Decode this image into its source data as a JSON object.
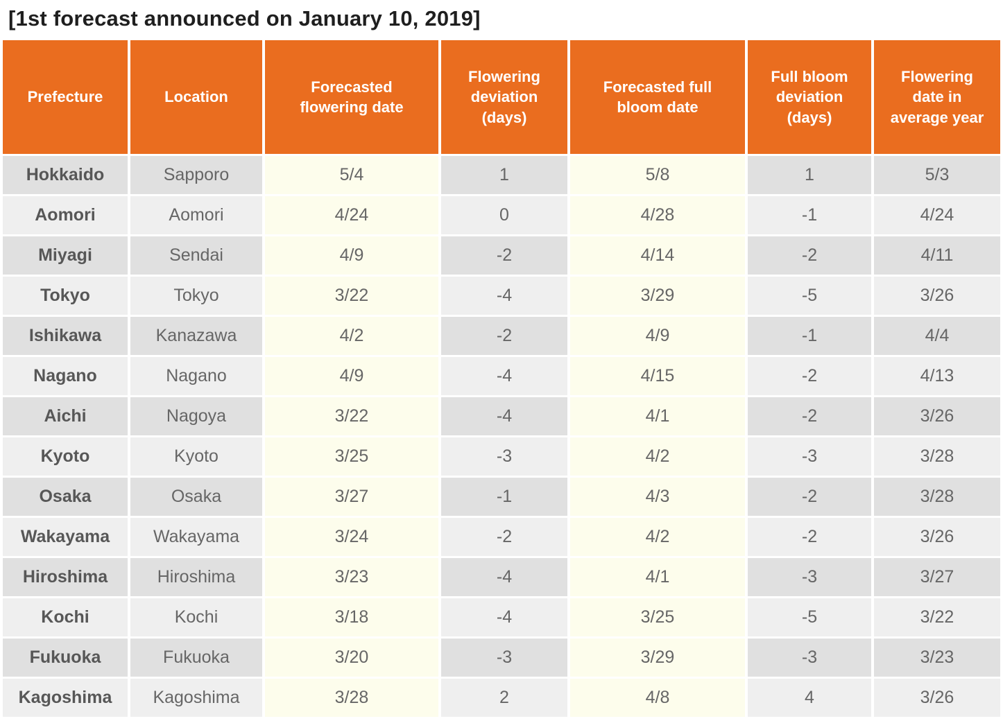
{
  "title": "[1st forecast announced on January 10, 2019]",
  "table": {
    "columns": [
      {
        "key": "prefecture",
        "label": "Prefecture"
      },
      {
        "key": "location",
        "label": "Location"
      },
      {
        "key": "forecasted-flowering-date",
        "label": "Forecasted flowering date"
      },
      {
        "key": "flowering-deviation-days",
        "label": "Flowering deviation (days)"
      },
      {
        "key": "forecasted-full-bloom-date",
        "label": "Forecasted full bloom date"
      },
      {
        "key": "full-bloom-deviation-days",
        "label": "Full bloom deviation (days)"
      },
      {
        "key": "flowering-date-average-year",
        "label": "Flowering date in average year"
      }
    ],
    "rows": [
      [
        "Hokkaido",
        "Sapporo",
        "5/4",
        "1",
        "5/8",
        "1",
        "5/3"
      ],
      [
        "Aomori",
        "Aomori",
        "4/24",
        "0",
        "4/28",
        "-1",
        "4/24"
      ],
      [
        "Miyagi",
        "Sendai",
        "4/9",
        "-2",
        "4/14",
        "-2",
        "4/11"
      ],
      [
        "Tokyo",
        "Tokyo",
        "3/22",
        "-4",
        "3/29",
        "-5",
        "3/26"
      ],
      [
        "Ishikawa",
        "Kanazawa",
        "4/2",
        "-2",
        "4/9",
        "-1",
        "4/4"
      ],
      [
        "Nagano",
        "Nagano",
        "4/9",
        "-4",
        "4/15",
        "-2",
        "4/13"
      ],
      [
        "Aichi",
        "Nagoya",
        "3/22",
        "-4",
        "4/1",
        "-2",
        "3/26"
      ],
      [
        "Kyoto",
        "Kyoto",
        "3/25",
        "-3",
        "4/2",
        "-3",
        "3/28"
      ],
      [
        "Osaka",
        "Osaka",
        "3/27",
        "-1",
        "4/3",
        "-2",
        "3/28"
      ],
      [
        "Wakayama",
        "Wakayama",
        "3/24",
        "-2",
        "4/2",
        "-2",
        "3/26"
      ],
      [
        "Hiroshima",
        "Hiroshima",
        "3/23",
        "-4",
        "4/1",
        "-3",
        "3/27"
      ],
      [
        "Kochi",
        "Kochi",
        "3/18",
        "-4",
        "3/25",
        "-5",
        "3/22"
      ],
      [
        "Fukuoka",
        "Fukuoka",
        "3/20",
        "-3",
        "3/29",
        "-3",
        "3/23"
      ],
      [
        "Kagoshima",
        "Kagoshima",
        "3/28",
        "2",
        "4/8",
        "4",
        "3/26"
      ]
    ]
  },
  "colors": {
    "header_bg": "#EA6D1F",
    "header_text": "#FFFFFF",
    "row_odd_bg": "#E0E0E0",
    "row_even_bg": "#EFEFEF",
    "date_column_bg": "#FDFDEC",
    "body_text": "#666666",
    "prefecture_text": "#575757",
    "title_text": "#1F1F1F",
    "gap": "#FFFFFF"
  },
  "chart_data": {
    "type": "table",
    "title": "[1st forecast announced on January 10, 2019]",
    "columns": [
      "Prefecture",
      "Location",
      "Forecasted flowering date",
      "Flowering deviation (days)",
      "Forecasted full bloom date",
      "Full bloom deviation (days)",
      "Flowering date in average year"
    ],
    "rows": [
      [
        "Hokkaido",
        "Sapporo",
        "5/4",
        1,
        "5/8",
        1,
        "5/3"
      ],
      [
        "Aomori",
        "Aomori",
        "4/24",
        0,
        "4/28",
        -1,
        "4/24"
      ],
      [
        "Miyagi",
        "Sendai",
        "4/9",
        -2,
        "4/14",
        -2,
        "4/11"
      ],
      [
        "Tokyo",
        "Tokyo",
        "3/22",
        -4,
        "3/29",
        -5,
        "3/26"
      ],
      [
        "Ishikawa",
        "Kanazawa",
        "4/2",
        -2,
        "4/9",
        -1,
        "4/4"
      ],
      [
        "Nagano",
        "Nagano",
        "4/9",
        -4,
        "4/15",
        -2,
        "4/13"
      ],
      [
        "Aichi",
        "Nagoya",
        "3/22",
        -4,
        "4/1",
        -2,
        "3/26"
      ],
      [
        "Kyoto",
        "Kyoto",
        "3/25",
        -3,
        "4/2",
        -3,
        "3/28"
      ],
      [
        "Osaka",
        "Osaka",
        "3/27",
        -1,
        "4/3",
        -2,
        "3/28"
      ],
      [
        "Wakayama",
        "Wakayama",
        "3/24",
        -2,
        "4/2",
        -2,
        "3/26"
      ],
      [
        "Hiroshima",
        "Hiroshima",
        "3/23",
        -4,
        "4/1",
        -3,
        "3/27"
      ],
      [
        "Kochi",
        "Kochi",
        "3/18",
        -4,
        "3/25",
        -5,
        "3/22"
      ],
      [
        "Fukuoka",
        "Fukuoka",
        "3/20",
        -3,
        "3/29",
        -3,
        "3/23"
      ],
      [
        "Kagoshima",
        "Kagoshima",
        "3/28",
        2,
        "4/8",
        4,
        "3/26"
      ]
    ]
  }
}
